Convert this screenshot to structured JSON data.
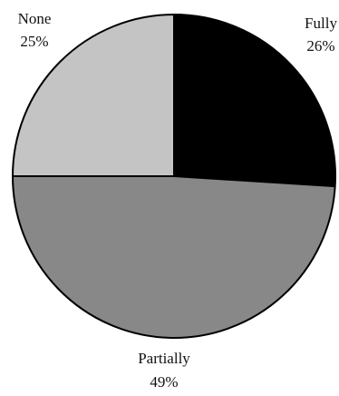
{
  "chart_data": {
    "type": "pie",
    "slices": [
      {
        "label": "Fully",
        "percent_label": "26%",
        "value": 26,
        "color": "#000000"
      },
      {
        "label": "Partially",
        "percent_label": "49%",
        "value": 49,
        "color": "#888888"
      },
      {
        "label": "None",
        "percent_label": "25%",
        "value": 25,
        "color": "#c4c4c4"
      }
    ],
    "start": "12 o'clock",
    "direction": "clockwise",
    "slice_outline_color": "#000000"
  }
}
